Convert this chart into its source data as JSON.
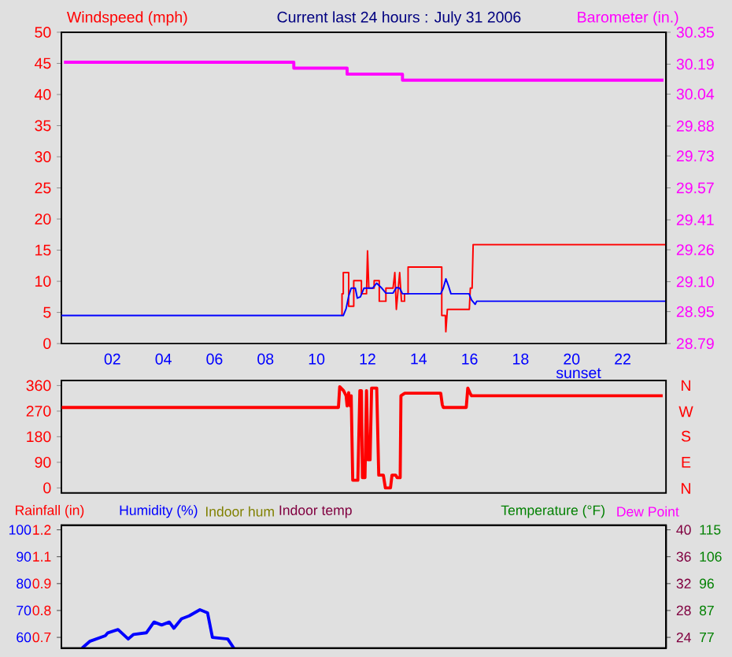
{
  "chart_data": [
    {
      "type": "line",
      "title": "Current last 24 hours : July 31 2006",
      "ylabel": "Windspeed (mph)",
      "y2label": "Barometer (in.)",
      "xlim": [
        0,
        23.7
      ],
      "xticks": [
        {
          "value": 2,
          "label": "02"
        },
        {
          "value": 4,
          "label": "04"
        },
        {
          "value": 6,
          "label": "06"
        },
        {
          "value": 8,
          "label": "08"
        },
        {
          "value": 10,
          "label": "10"
        },
        {
          "value": 12,
          "label": "12"
        },
        {
          "value": 14,
          "label": "14"
        },
        {
          "value": 16,
          "label": "16"
        },
        {
          "value": 18,
          "label": "18"
        },
        {
          "value": 20,
          "label": "20"
        },
        {
          "value": 22,
          "label": "22"
        }
      ],
      "ylim": [
        0,
        50
      ],
      "yticks": [
        0,
        5,
        10,
        15,
        20,
        25,
        30,
        35,
        40,
        45,
        50
      ],
      "y2lim": [
        28.79,
        30.35
      ],
      "y2ticks": [
        28.79,
        28.95,
        {
          "value": 29.1,
          "label": "29.10"
        },
        29.26,
        29.41,
        29.57,
        29.73,
        29.88,
        30.04,
        30.19,
        30.35
      ],
      "annotations": [
        "sunset"
      ],
      "series": [
        {
          "color": "#ff0000",
          "x": [
            11.0,
            11.0,
            11.05,
            11.05,
            11.26,
            11.26,
            11.46,
            11.46,
            11.76,
            11.76,
            11.96,
            12.0,
            12.05,
            12.26,
            12.26,
            12.46,
            12.46,
            12.72,
            12.72,
            13.0,
            13.07,
            13.13,
            13.26,
            13.33,
            13.45,
            13.45,
            13.59,
            13.59,
            14.91,
            14.91,
            15.05,
            15.07,
            15.13,
            15.99,
            16.03,
            16.1,
            16.14,
            23.7
          ],
          "values": [
            4.5,
            8.0,
            8.0,
            11.4,
            11.4,
            6.0,
            6.0,
            10.1,
            10.1,
            8.0,
            8.0,
            14.9,
            8.9,
            8.9,
            10.1,
            10.1,
            6.8,
            6.8,
            8.9,
            8.9,
            11.4,
            5.5,
            11.4,
            6.8,
            6.8,
            8.0,
            8.0,
            12.3,
            12.3,
            4.5,
            4.5,
            1.9,
            5.5,
            5.5,
            8.9,
            8.9,
            15.9,
            15.9
          ]
        },
        {
          "color": "#0000ff",
          "x": [
            0,
            11.05,
            11.16,
            11.26,
            11.36,
            11.52,
            11.6,
            11.72,
            11.86,
            12.2,
            12.36,
            12.56,
            12.72,
            13.0,
            13.13,
            13.26,
            13.37,
            14.87,
            14.97,
            15.07,
            15.17,
            15.27,
            15.98,
            16.08,
            16.22,
            16.28,
            23.7
          ],
          "values": [
            4.5,
            4.5,
            5.6,
            7.6,
            8.9,
            8.9,
            7.3,
            7.5,
            8.9,
            8.9,
            9.7,
            8.9,
            8.1,
            8.1,
            9.0,
            8.9,
            8.0,
            8.0,
            8.9,
            10.4,
            9.3,
            8.0,
            8.0,
            7.0,
            6.3,
            6.8,
            6.8
          ]
        },
        {
          "color": "#ff00ff",
          "axis": "y2",
          "x": [
            0.1,
            9.11,
            9.11,
            11.2,
            11.2,
            13.37,
            13.37,
            23.6
          ],
          "values": [
            30.2,
            30.2,
            30.17,
            30.17,
            30.14,
            30.14,
            30.11,
            30.11
          ]
        }
      ]
    },
    {
      "type": "line",
      "xlim": [
        0,
        23.7
      ],
      "tick_labels": "y",
      "ylim": [
        -18,
        378
      ],
      "yticks": [
        0,
        90,
        180,
        270,
        360
      ],
      "annotations": [
        "N",
        "W",
        "S",
        "E",
        "N"
      ],
      "series": [
        {
          "color": "#ff0000",
          "x": [
            0.01,
            10.86,
            10.91,
            11.06,
            11.16,
            11.2,
            11.26,
            11.32,
            11.36,
            11.42,
            11.62,
            11.7,
            11.76,
            11.8,
            11.9,
            11.96,
            12.02,
            12.1,
            12.16,
            12.36,
            12.44,
            12.62,
            12.7,
            12.9,
            12.96,
            13.1,
            13.16,
            13.28,
            13.31,
            13.46,
            14.87,
            14.93,
            14.97,
            15.87,
            15.93,
            16.02,
            16.08,
            23.57
          ],
          "values": [
            283,
            283,
            356,
            342,
            324,
            288,
            335,
            288,
            324,
            27,
            27,
            342,
            342,
            36,
            36,
            342,
            99,
            99,
            351,
            351,
            45,
            45,
            0,
            0,
            45,
            45,
            36,
            36,
            324,
            333,
            333,
            293,
            283,
            283,
            351,
            333,
            324,
            324
          ]
        }
      ]
    },
    {
      "type": "line",
      "xlim": [
        0,
        23.7
      ],
      "tick_labels": "y",
      "ylabel": "Rainfall (in)",
      "y3label": "Humidity (%)",
      "ylim": [
        0.65,
        1.221
      ],
      "yticks": [
        0.7,
        {
          "value": 0.825,
          "label": "0.8"
        },
        {
          "value": 0.95,
          "label": "0.9"
        },
        {
          "value": 1.075,
          "label": "1.1"
        },
        1.2
      ],
      "y2lim": [
        22.4,
        40.68
      ],
      "y2ticks": [
        24,
        28,
        32,
        36,
        40
      ],
      "y3lim": [
        56,
        101.7
      ],
      "y3ticks": [
        60,
        70,
        80,
        90,
        100
      ],
      "annotations": [
        "Indoor hum",
        "Indoor temp"
      ],
      "series": [
        {
          "color": "#0000ff",
          "axis": "y3",
          "x": [
            0.81,
            1.11,
            1.72,
            1.82,
            2.22,
            2.62,
            2.83,
            3.33,
            3.63,
            3.93,
            4.23,
            4.41,
            4.71,
            5.01,
            5.43,
            5.73,
            5.92,
            6.52,
            6.76
          ],
          "values": [
            56,
            58.5,
            60.6,
            61.7,
            62.9,
            59.4,
            61.1,
            61.7,
            65.7,
            64.6,
            65.7,
            63.4,
            66.9,
            68,
            70.3,
            69.1,
            60,
            59.4,
            56
          ]
        }
      ]
    },
    {
      "type": "line",
      "xlim": [
        0,
        23.7
      ],
      "tick_labels": "y",
      "y2label": "Temperature (°F)",
      "y2lim": [
        73.2,
        116.6
      ],
      "y2ticks": [
        77,
        {
          "value": 86.5,
          "label": "87"
        },
        96,
        {
          "value": 105.5,
          "label": "106"
        },
        115
      ],
      "annotations": [
        "Dew Point"
      ]
    }
  ]
}
